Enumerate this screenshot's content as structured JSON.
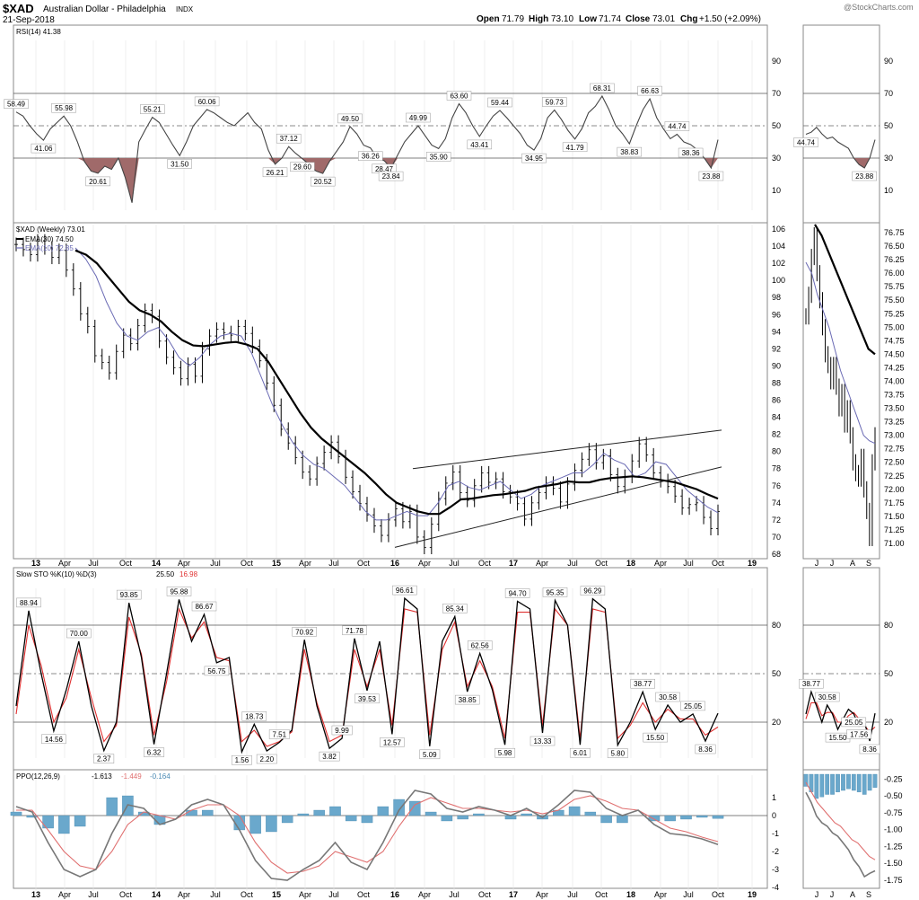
{
  "header": {
    "symbol": "$XAD",
    "name": "Australian Dollar - Philadelphia",
    "exchange": "INDX",
    "date": "21-Sep-2018",
    "watermark": "@StockCharts.com",
    "open_label": "Open",
    "open": "71.79",
    "high_label": "High",
    "high": "73.10",
    "low_label": "Low",
    "low": "71.74",
    "close_label": "Close",
    "close": "73.01",
    "chg_label": "Chg",
    "chg": "+1.50 (+2.09%)"
  },
  "colors": {
    "price": "#000000",
    "ema30": "#000000",
    "ema10": "#6a6ab4",
    "rsi_fill": "#a06a6a",
    "sto_d": "#e03030",
    "ppo_signal": "#e07070",
    "ppo_hist": "#6aa8cc",
    "ppo_line": "#777777"
  },
  "chart_data": [
    {
      "type": "line",
      "panel": "rsi",
      "legend": "RSI(14) 41.38",
      "ylim": [
        0,
        100
      ],
      "levels": [
        70,
        50,
        30
      ],
      "right_ticks": [
        "90",
        "70",
        "50",
        "30",
        "10"
      ],
      "series": [
        {
          "values": [
            58.49,
            56,
            50,
            45,
            41.06,
            48,
            52,
            55.98,
            50,
            40,
            28,
            22,
            20.61,
            25,
            23,
            30,
            18,
            2.37,
            40,
            48,
            55.21,
            52,
            45,
            38,
            31.5,
            40,
            50,
            55,
            60.06,
            58,
            55,
            52,
            50,
            54,
            58,
            52,
            48,
            35,
            26.21,
            30,
            37.12,
            33,
            29.6,
            26,
            22,
            20.52,
            28,
            34,
            40,
            49.5,
            45,
            38,
            36.26,
            30,
            28.47,
            23.84,
            32,
            40,
            45,
            49.99,
            44,
            38,
            35.9,
            42,
            55,
            63.6,
            58,
            50,
            43.41,
            50,
            56,
            59.44,
            55,
            50,
            45,
            38,
            34.95,
            42,
            55,
            59.73,
            54,
            47,
            41.79,
            48,
            58,
            62,
            68.31,
            60,
            50,
            45,
            38.83,
            50,
            60,
            66.63,
            55,
            48,
            42,
            44.74,
            40,
            38.36,
            35,
            30,
            23.88,
            41.38
          ]
        }
      ],
      "annotations": [
        "58.49",
        "41.06",
        "55.98",
        "20.61",
        "55.21",
        "31.50",
        "60.06",
        "26.21",
        "37.12",
        "29.60",
        "20.52",
        "49.50",
        "28.47",
        "36.26",
        "23.84",
        "49.99",
        "35.90",
        "63.60",
        "43.41",
        "59.44",
        "34.95",
        "59.73",
        "41.79",
        "68.31",
        "38.83",
        "66.63",
        "44.74",
        "38.36",
        "23.88"
      ]
    },
    {
      "type": "line",
      "panel": "price",
      "legend": "$XAD (Weekly) 73.01",
      "legend_ema30": "EMA(30) 74.50",
      "legend_ema10": "EMA(10) 72.85",
      "ylim": [
        68,
        106
      ],
      "right_ticks": [
        "106",
        "104",
        "102",
        "100",
        "98",
        "96",
        "94",
        "92",
        "90",
        "88",
        "86",
        "84",
        "82",
        "80",
        "78",
        "76",
        "74",
        "72",
        "70",
        "68"
      ],
      "x_ticks": [
        "13",
        "Apr",
        "Jul",
        "Oct",
        "14",
        "Apr",
        "Jul",
        "Oct",
        "15",
        "Apr",
        "Jul",
        "Oct",
        "16",
        "Apr",
        "Jul",
        "Oct",
        "17",
        "Apr",
        "Jul",
        "Oct",
        "18",
        "Apr",
        "Jul",
        "Oct",
        "19"
      ],
      "series": [
        {
          "name": "$XAD",
          "values": [
            104.2,
            103.6,
            103.0,
            104.6,
            103.8,
            102.7,
            103.5,
            101.2,
            99.0,
            96.1,
            94.6,
            91.2,
            90.4,
            89.2,
            91.7,
            93.6,
            92.6,
            94.7,
            96.5,
            95.8,
            92.9,
            91.0,
            89.8,
            88.5,
            90.2,
            88.8,
            92.0,
            93.5,
            94.3,
            93.9,
            93.6,
            94.6,
            93.8,
            92.3,
            90.6,
            88.0,
            85.4,
            82.6,
            81.0,
            79.3,
            77.6,
            76.8,
            78.6,
            79.9,
            81.1,
            79.4,
            77.0,
            75.3,
            73.9,
            72.6,
            71.3,
            70.2,
            72.0,
            73.3,
            71.8,
            73.0,
            70.0,
            68.8,
            71.5,
            74.5,
            76.3,
            77.6,
            75.2,
            74.3,
            76.0,
            77.5,
            76.4,
            76.8,
            75.3,
            74.7,
            73.9,
            72.1,
            74.0,
            75.2,
            76.3,
            75.7,
            74.1,
            76.2,
            77.8,
            79.1,
            80.2,
            78.7,
            79.5,
            77.3,
            75.9,
            77.1,
            78.9,
            80.9,
            79.6,
            77.5,
            76.6,
            75.9,
            74.8,
            73.4,
            73.8,
            74.0,
            72.3,
            71.0,
            73.0
          ]
        },
        {
          "name": "EMA(30)",
          "values": [
            103.5,
            103.0,
            102.0,
            100.5,
            99.0,
            97.5,
            96.5,
            96.0,
            95.2,
            94.0,
            93.0,
            92.4,
            92.3,
            92.5,
            92.7,
            92.8,
            92.5,
            92.0,
            90.5,
            88.5,
            86.5,
            84.5,
            82.8,
            81.5,
            80.5,
            79.5,
            78.5,
            77.5,
            76.3,
            75.0,
            74.0,
            73.5,
            73.0,
            72.7,
            72.7,
            73.5,
            74.4,
            74.5,
            74.7,
            74.9,
            75.0,
            75.2,
            75.4,
            75.8,
            76.0,
            76.2,
            76.5,
            76.4,
            76.4,
            76.7,
            76.9,
            77.0,
            77.1,
            77.0,
            76.8,
            76.6,
            76.4,
            76.0,
            75.6,
            75.0,
            74.5
          ]
        },
        {
          "name": "EMA(10)",
          "values": [
            103.8,
            102.5,
            100.5,
            97.5,
            95.0,
            93.5,
            93.0,
            94.0,
            94.5,
            93.0,
            91.0,
            90.0,
            91.0,
            92.5,
            93.5,
            93.8,
            93.5,
            91.5,
            88.5,
            85.5,
            83.0,
            81.0,
            79.5,
            78.5,
            78.0,
            77.0,
            76.0,
            74.5,
            73.0,
            72.0,
            72.0,
            72.5,
            73.0,
            72.5,
            72.5,
            74.0,
            76.0,
            76.5,
            75.8,
            75.5,
            76.0,
            76.5,
            75.5,
            74.5,
            75.0,
            76.0,
            76.5,
            77.0,
            77.5,
            77.5,
            78.5,
            79.8,
            79.0,
            78.5,
            77.0,
            77.5,
            78.8,
            78.5,
            77.0,
            75.5,
            74.5,
            73.5,
            72.85
          ]
        }
      ]
    },
    {
      "type": "line",
      "panel": "slow_stochastic",
      "legend": "Slow STO %K(10) %D(3)",
      "legend_k": "25.50",
      "legend_d": "16.98",
      "ylim": [
        0,
        100
      ],
      "levels": [
        80,
        50,
        20
      ],
      "right_ticks": [
        "80",
        "50",
        "20"
      ],
      "series": [
        {
          "name": "%K",
          "values": [
            30,
            88.94,
            50,
            14.56,
            40,
            70,
            30,
            2.37,
            20,
            93.85,
            60,
            6.32,
            50,
            95.88,
            70,
            86.67,
            56.75,
            60,
            1.56,
            18.73,
            2.2,
            7.51,
            15,
            70.92,
            30,
            3.82,
            9.99,
            71.78,
            39.53,
            70,
            12.57,
            96.61,
            90,
            5.09,
            70,
            85.34,
            38.85,
            62.56,
            40,
            5.98,
            94.7,
            90,
            13.33,
            95.35,
            80,
            6.01,
            96.29,
            90,
            5.8,
            20,
            38.77,
            15.5,
            30.58,
            20,
            25.05,
            8.36,
            25.5
          ]
        },
        {
          "name": "%D",
          "values": [
            25,
            80,
            55,
            20,
            35,
            65,
            35,
            8,
            18,
            85,
            62,
            12,
            45,
            90,
            72,
            82,
            60,
            58,
            8,
            15,
            5,
            8,
            14,
            65,
            32,
            8,
            12,
            65,
            42,
            65,
            18,
            90,
            88,
            12,
            65,
            82,
            42,
            58,
            42,
            10,
            88,
            88,
            18,
            90,
            80,
            10,
            90,
            88,
            10,
            18,
            32,
            20,
            28,
            22,
            22,
            12,
            16.98
          ]
        }
      ],
      "annotations": [
        "88.94",
        "70.00",
        "14.56",
        "2.37",
        "93.85",
        "6.32",
        "95.88",
        "86.67",
        "56.75",
        "1.56",
        "18.73",
        "2.20",
        "7.51",
        "70.92",
        "3.82",
        "71.78",
        "9.99",
        "39.53",
        "12.57",
        "96.61",
        "5.09",
        "85.34",
        "38.85",
        "62.56",
        "5.98",
        "94.70",
        "13.33",
        "95.35",
        "6.01",
        "96.29",
        "5.80",
        "38.77",
        "30.58",
        "25.05",
        "15.50",
        "8.36"
      ]
    },
    {
      "type": "line",
      "panel": "ppo",
      "legend": "PPO(12,26,9)",
      "legend_ppo": "-1.613",
      "legend_signal": "-1.449",
      "legend_hist": "-0.164",
      "ylim": [
        -4,
        2
      ],
      "right_ticks": [
        "1",
        "0",
        "-1",
        "-2",
        "-3",
        "-4"
      ],
      "series": [
        {
          "name": "PPO",
          "values": [
            0.5,
            0.2,
            -1.5,
            -3.0,
            -3.4,
            -3.0,
            -1.0,
            0.6,
            0.4,
            -0.5,
            -0.2,
            0.6,
            0.9,
            0.6,
            -0.8,
            -2.5,
            -3.5,
            -3.6,
            -3.0,
            -2.5,
            -1.5,
            -2.6,
            -3.0,
            -1.5,
            0.3,
            1.4,
            1.2,
            0.4,
            0.2,
            0.5,
            0.3,
            0.0,
            0.4,
            -0.1,
            0.6,
            1.4,
            1.3,
            0.4,
            0.0,
            0.3,
            -0.5,
            -1.0,
            -1.1,
            -1.3,
            -1.613
          ]
        },
        {
          "name": "Signal",
          "values": [
            0.3,
            0.3,
            -0.8,
            -2.0,
            -2.8,
            -3.0,
            -2.0,
            -0.5,
            0.2,
            0.0,
            -0.2,
            0.3,
            0.6,
            0.6,
            0.0,
            -1.5,
            -2.6,
            -3.2,
            -3.1,
            -2.8,
            -2.0,
            -2.3,
            -2.6,
            -2.0,
            -0.6,
            0.6,
            1.0,
            0.7,
            0.4,
            0.4,
            0.3,
            0.2,
            0.3,
            0.1,
            0.3,
            0.9,
            1.1,
            0.8,
            0.4,
            0.3,
            -0.2,
            -0.7,
            -0.9,
            -1.2,
            -1.449
          ]
        },
        {
          "name": "Histogram",
          "values": [
            0.2,
            -0.1,
            -0.7,
            -1.0,
            -0.6,
            0.0,
            1.0,
            1.1,
            0.2,
            -0.5,
            0.0,
            0.3,
            0.3,
            0.0,
            -0.8,
            -1.0,
            -0.9,
            -0.4,
            0.1,
            0.3,
            0.5,
            -0.3,
            -0.4,
            0.5,
            0.9,
            0.8,
            0.2,
            -0.3,
            -0.2,
            0.1,
            0.0,
            -0.2,
            0.1,
            -0.2,
            0.3,
            0.5,
            0.2,
            -0.4,
            -0.4,
            0.0,
            -0.3,
            -0.3,
            -0.2,
            -0.1,
            -0.164
          ]
        }
      ]
    },
    {
      "type": "line",
      "panel": "rsi_daily",
      "right_ticks": [
        "90",
        "70",
        "50",
        "30",
        "10"
      ],
      "series": [
        {
          "values": [
            44.74,
            46,
            49,
            45,
            42,
            43,
            40,
            38,
            36,
            30,
            26,
            23.88,
            30,
            41.38
          ]
        }
      ],
      "annotations": [
        "44.74",
        "23.88"
      ]
    },
    {
      "type": "line",
      "panel": "price_daily",
      "right_ticks": [
        "76.75",
        "76.50",
        "76.25",
        "76.00",
        "75.75",
        "75.50",
        "75.25",
        "75.00",
        "74.75",
        "74.50",
        "74.25",
        "74.00",
        "73.75",
        "73.50",
        "73.25",
        "73.00",
        "72.75",
        "72.50",
        "72.25",
        "72.00",
        "71.75",
        "71.50",
        "71.25",
        "71.00"
      ],
      "x_ticks": [
        "J",
        "J",
        "A",
        "S"
      ],
      "ylim": [
        70.8,
        76.9
      ],
      "series": [
        {
          "name": "Price",
          "values": [
            75.2,
            75.6,
            76.3,
            76.7,
            76.0,
            75.5,
            75.0,
            74.5,
            74.3,
            74.0,
            74.3,
            73.9,
            73.5,
            73.8,
            73.2,
            73.5,
            73.0,
            72.5,
            72.3,
            72.2,
            72.6,
            72.0,
            71.6,
            71.1,
            72.5,
            73.0
          ]
        },
        {
          "name": "EMA(30)",
          "values": [
            76.9,
            76.7,
            76.4,
            76.1,
            75.8,
            75.5,
            75.2,
            74.9,
            74.6,
            74.5
          ]
        },
        {
          "name": "EMA(10)",
          "values": [
            76.2,
            76.0,
            75.6,
            75.3,
            75.0,
            74.6,
            74.2,
            73.9,
            73.6,
            73.3,
            73.0,
            72.9,
            72.85
          ]
        }
      ]
    },
    {
      "type": "line",
      "panel": "sto_daily",
      "right_ticks": [
        "80",
        "50",
        "20"
      ],
      "series": [
        {
          "name": "%K",
          "values": [
            25,
            38.77,
            30,
            20,
            30.58,
            25,
            15.5,
            22,
            28,
            25.05,
            17.56,
            20,
            8.36,
            25.5
          ]
        },
        {
          "name": "%D",
          "values": [
            22,
            32,
            32,
            24,
            26,
            26,
            20,
            20,
            24,
            26,
            22,
            18,
            14,
            16.98
          ]
        }
      ],
      "annotations": [
        "38.77",
        "30.58",
        "25.05",
        "15.50",
        "17.56",
        "8.36"
      ]
    },
    {
      "type": "line",
      "panel": "ppo_daily",
      "right_ticks": [
        "-0.25",
        "-0.50",
        "-0.75",
        "-1.00",
        "-1.25",
        "-1.50",
        "-1.75"
      ],
      "series": [
        {
          "name": "PPO",
          "values": [
            -0.45,
            -0.6,
            -0.8,
            -0.9,
            -0.95,
            -1.05,
            -1.1,
            -1.2,
            -1.3,
            -1.45,
            -1.55,
            -1.7,
            -1.65,
            -1.613
          ]
        },
        {
          "name": "Signal",
          "values": [
            -0.3,
            -0.45,
            -0.6,
            -0.7,
            -0.8,
            -0.9,
            -0.95,
            -1.05,
            -1.15,
            -1.2,
            -1.3,
            -1.4,
            -1.449
          ]
        },
        {
          "name": "Histogram",
          "values": [
            -0.15,
            -0.22,
            -0.3,
            -0.28,
            -0.25,
            -0.25,
            -0.22,
            -0.2,
            -0.18,
            -0.2,
            -0.22,
            -0.25,
            -0.2,
            -0.164
          ]
        }
      ]
    }
  ]
}
